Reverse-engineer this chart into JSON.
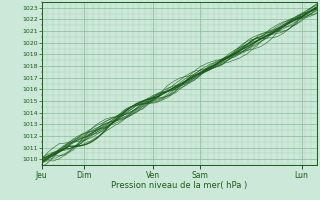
{
  "title": "",
  "xlabel": "Pression niveau de la mer( hPa )",
  "bg_color": "#cce8d8",
  "plot_bg_color": "#cce8d8",
  "grid_color_major": "#88bb99",
  "grid_color_minor": "#aad4bb",
  "line_color": "#1a5c1a",
  "ylim": [
    1009.5,
    1023.5
  ],
  "yticks": [
    1010,
    1011,
    1012,
    1013,
    1014,
    1015,
    1016,
    1017,
    1018,
    1019,
    1020,
    1021,
    1022,
    1023
  ],
  "xtick_labels": [
    "Jeu",
    "Dim",
    "Ven",
    "Sam",
    "Lun"
  ],
  "xtick_positions": [
    0.0,
    0.155,
    0.405,
    0.575,
    0.945
  ],
  "num_points": 300
}
